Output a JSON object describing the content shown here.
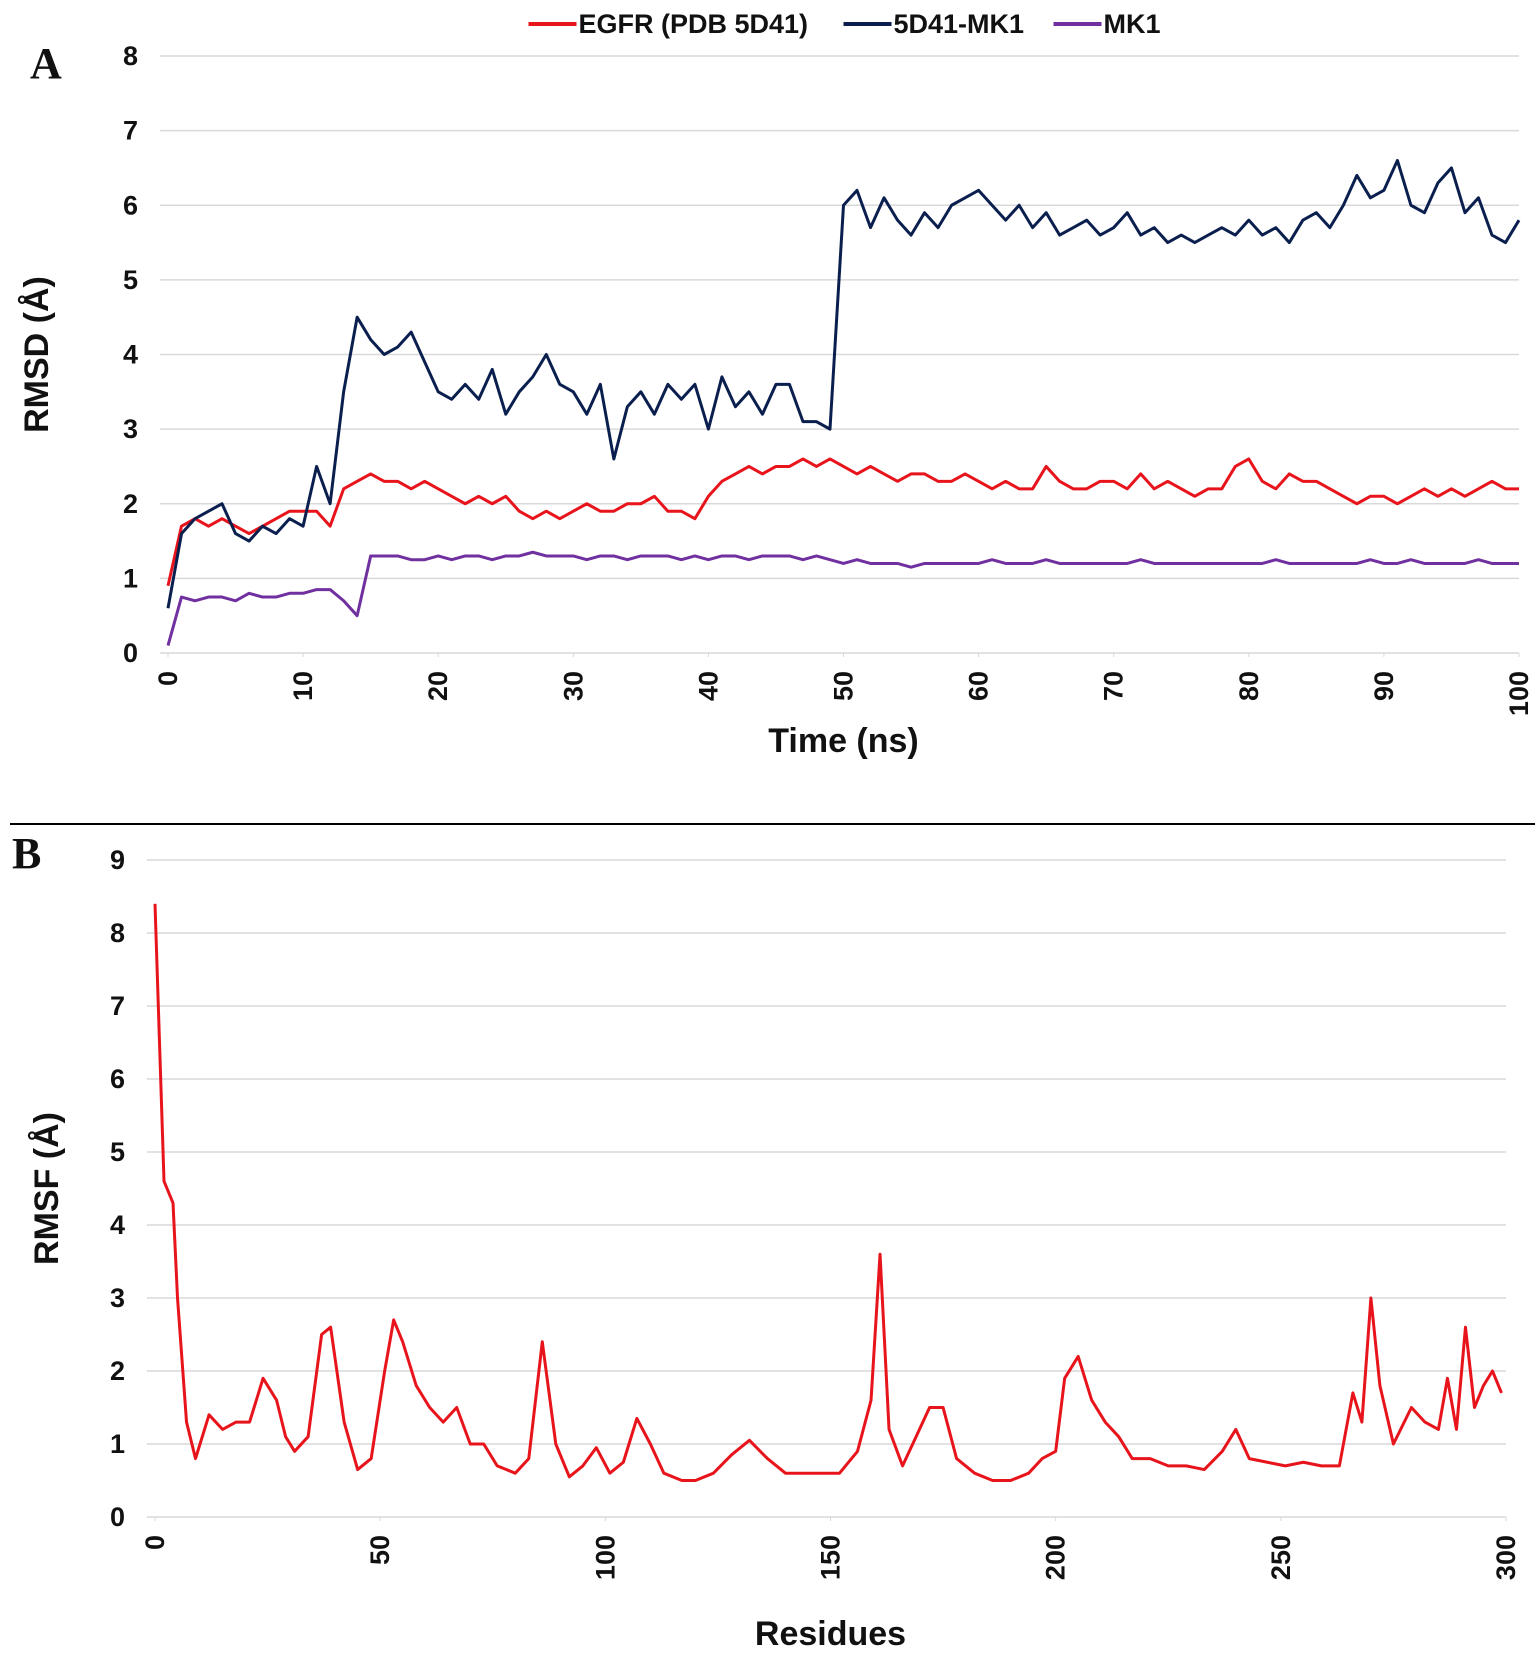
{
  "chart_data": [
    {
      "type": "line",
      "panel_label": "A",
      "xlabel": "Time (ns)",
      "ylabel": "RMSD (Å)",
      "xlim": [
        0,
        100
      ],
      "xticks": [
        0,
        10,
        20,
        30,
        40,
        50,
        60,
        70,
        80,
        90,
        100
      ],
      "ylim": [
        0,
        8
      ],
      "yticks": [
        0,
        1,
        2,
        3,
        4,
        5,
        6,
        7,
        8
      ],
      "grid": true,
      "legend": "top",
      "x": [
        0,
        1,
        2,
        3,
        4,
        5,
        6,
        7,
        8,
        9,
        10,
        11,
        12,
        13,
        14,
        15,
        16,
        17,
        18,
        19,
        20,
        21,
        22,
        23,
        24,
        25,
        26,
        27,
        28,
        29,
        30,
        31,
        32,
        33,
        34,
        35,
        36,
        37,
        38,
        39,
        40,
        41,
        42,
        43,
        44,
        45,
        46,
        47,
        48,
        49,
        50,
        51,
        52,
        53,
        54,
        55,
        56,
        57,
        58,
        59,
        60,
        61,
        62,
        63,
        64,
        65,
        66,
        67,
        68,
        69,
        70,
        71,
        72,
        73,
        74,
        75,
        76,
        77,
        78,
        79,
        80,
        81,
        82,
        83,
        84,
        85,
        86,
        87,
        88,
        89,
        90,
        91,
        92,
        93,
        94,
        95,
        96,
        97,
        98,
        99,
        100
      ],
      "series": [
        {
          "name": "EGFR (PDB 5D41)",
          "color": "#e8141c",
          "values": [
            0.9,
            1.7,
            1.8,
            1.7,
            1.8,
            1.7,
            1.6,
            1.7,
            1.8,
            1.9,
            1.9,
            1.9,
            1.7,
            2.2,
            2.3,
            2.4,
            2.3,
            2.3,
            2.2,
            2.3,
            2.2,
            2.1,
            2.0,
            2.1,
            2.0,
            2.1,
            1.9,
            1.8,
            1.9,
            1.8,
            1.9,
            2.0,
            1.9,
            1.9,
            2.0,
            2.0,
            2.1,
            1.9,
            1.9,
            1.8,
            2.1,
            2.3,
            2.4,
            2.5,
            2.4,
            2.5,
            2.5,
            2.6,
            2.5,
            2.6,
            2.5,
            2.4,
            2.5,
            2.4,
            2.3,
            2.4,
            2.4,
            2.3,
            2.3,
            2.4,
            2.3,
            2.2,
            2.3,
            2.2,
            2.2,
            2.5,
            2.3,
            2.2,
            2.2,
            2.3,
            2.3,
            2.2,
            2.4,
            2.2,
            2.3,
            2.2,
            2.1,
            2.2,
            2.2,
            2.5,
            2.6,
            2.3,
            2.2,
            2.4,
            2.3,
            2.3,
            2.2,
            2.1,
            2.0,
            2.1,
            2.1,
            2.0,
            2.1,
            2.2,
            2.1,
            2.2,
            2.1,
            2.2,
            2.3,
            2.2,
            2.2
          ]
        },
        {
          "name": "5D41-MK1",
          "color": "#0b1f4f",
          "values": [
            0.6,
            1.6,
            1.8,
            1.9,
            2.0,
            1.6,
            1.5,
            1.7,
            1.6,
            1.8,
            1.7,
            2.5,
            2.0,
            3.5,
            4.5,
            4.2,
            4.0,
            4.1,
            4.3,
            3.9,
            3.5,
            3.4,
            3.6,
            3.4,
            3.8,
            3.2,
            3.5,
            3.7,
            4.0,
            3.6,
            3.5,
            3.2,
            3.6,
            2.6,
            3.3,
            3.5,
            3.2,
            3.6,
            3.4,
            3.6,
            3.0,
            3.7,
            3.3,
            3.5,
            3.2,
            3.6,
            3.6,
            3.1,
            3.1,
            3.0,
            6.0,
            6.2,
            5.7,
            6.1,
            5.8,
            5.6,
            5.9,
            5.7,
            6.0,
            6.1,
            6.2,
            6.0,
            5.8,
            6.0,
            5.7,
            5.9,
            5.6,
            5.7,
            5.8,
            5.6,
            5.7,
            5.9,
            5.6,
            5.7,
            5.5,
            5.6,
            5.5,
            5.6,
            5.7,
            5.6,
            5.8,
            5.6,
            5.7,
            5.5,
            5.8,
            5.9,
            5.7,
            6.0,
            6.4,
            6.1,
            6.2,
            6.6,
            6.0,
            5.9,
            6.3,
            6.5,
            5.9,
            6.1,
            5.6,
            5.5,
            5.8
          ]
        },
        {
          "name": "MK1",
          "color": "#7030a0",
          "values": [
            0.1,
            0.75,
            0.7,
            0.75,
            0.75,
            0.7,
            0.8,
            0.75,
            0.75,
            0.8,
            0.8,
            0.85,
            0.85,
            0.7,
            0.5,
            1.3,
            1.3,
            1.3,
            1.25,
            1.25,
            1.3,
            1.25,
            1.3,
            1.3,
            1.25,
            1.3,
            1.3,
            1.35,
            1.3,
            1.3,
            1.3,
            1.25,
            1.3,
            1.3,
            1.25,
            1.3,
            1.3,
            1.3,
            1.25,
            1.3,
            1.25,
            1.3,
            1.3,
            1.25,
            1.3,
            1.3,
            1.3,
            1.25,
            1.3,
            1.25,
            1.2,
            1.25,
            1.2,
            1.2,
            1.2,
            1.15,
            1.2,
            1.2,
            1.2,
            1.2,
            1.2,
            1.25,
            1.2,
            1.2,
            1.2,
            1.25,
            1.2,
            1.2,
            1.2,
            1.2,
            1.2,
            1.2,
            1.25,
            1.2,
            1.2,
            1.2,
            1.2,
            1.2,
            1.2,
            1.2,
            1.2,
            1.2,
            1.25,
            1.2,
            1.2,
            1.2,
            1.2,
            1.2,
            1.2,
            1.25,
            1.2,
            1.2,
            1.25,
            1.2,
            1.2,
            1.2,
            1.2,
            1.25,
            1.2,
            1.2,
            1.2
          ]
        }
      ]
    },
    {
      "type": "line",
      "panel_label": "B",
      "xlabel": "Residues",
      "ylabel": "RMSF (Å)",
      "xlim": [
        0,
        300
      ],
      "xticks": [
        0,
        50,
        100,
        150,
        200,
        250,
        300
      ],
      "ylim": [
        0,
        9
      ],
      "yticks": [
        0,
        1,
        2,
        3,
        4,
        5,
        6,
        7,
        8,
        9
      ],
      "grid": true,
      "color": "#e8141c",
      "x": [
        0,
        2,
        4,
        5,
        7,
        9,
        12,
        15,
        18,
        21,
        24,
        27,
        29,
        31,
        34,
        37,
        39,
        42,
        45,
        48,
        51,
        53,
        55,
        58,
        61,
        64,
        67,
        70,
        73,
        76,
        80,
        83,
        86,
        89,
        92,
        95,
        98,
        101,
        104,
        107,
        110,
        113,
        117,
        120,
        124,
        128,
        132,
        136,
        140,
        144,
        148,
        152,
        156,
        159,
        161,
        163,
        166,
        169,
        172,
        175,
        178,
        182,
        186,
        190,
        194,
        197,
        200,
        202,
        205,
        208,
        211,
        214,
        217,
        221,
        225,
        229,
        233,
        237,
        240,
        243,
        247,
        251,
        255,
        259,
        263,
        266,
        268,
        270,
        272,
        275,
        279,
        282,
        285,
        287,
        289,
        291,
        293,
        295,
        297,
        299
      ],
      "values": [
        8.4,
        4.6,
        4.3,
        3.0,
        1.3,
        0.8,
        1.4,
        1.2,
        1.3,
        1.3,
        1.9,
        1.6,
        1.1,
        0.9,
        1.1,
        2.5,
        2.6,
        1.3,
        0.65,
        0.8,
        2.0,
        2.7,
        2.4,
        1.8,
        1.5,
        1.3,
        1.5,
        1.0,
        1.0,
        0.7,
        0.6,
        0.8,
        2.4,
        1.0,
        0.55,
        0.7,
        0.95,
        0.6,
        0.75,
        1.35,
        1.0,
        0.6,
        0.5,
        0.5,
        0.6,
        0.85,
        1.05,
        0.8,
        0.6,
        0.6,
        0.6,
        0.6,
        0.9,
        1.6,
        3.6,
        1.2,
        0.7,
        1.1,
        1.5,
        1.5,
        0.8,
        0.6,
        0.5,
        0.5,
        0.6,
        0.8,
        0.9,
        1.9,
        2.2,
        1.6,
        1.3,
        1.1,
        0.8,
        0.8,
        0.7,
        0.7,
        0.65,
        0.9,
        1.2,
        0.8,
        0.75,
        0.7,
        0.75,
        0.7,
        0.7,
        1.7,
        1.3,
        3.0,
        1.8,
        1.0,
        1.5,
        1.3,
        1.2,
        1.9,
        1.2,
        2.6,
        1.5,
        1.8,
        2.0,
        1.7
      ]
    }
  ]
}
